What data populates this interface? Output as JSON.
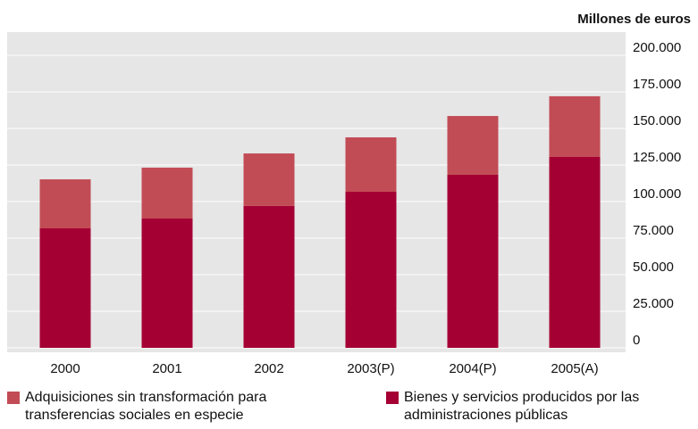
{
  "chart_data": {
    "type": "stacked_bar",
    "y_axis_label": "Millones de euros",
    "categories": [
      "2000",
      "2001",
      "2002",
      "2003(P)",
      "2004(P)",
      "2005(A)"
    ],
    "series": [
      {
        "name": "Bienes y servicios producidos por las administraciones públicas",
        "color": "#a50034",
        "values": [
          81700,
          88400,
          97000,
          106700,
          118300,
          130500
        ]
      },
      {
        "name": "Adquisiciones sin transformación para transferencias sociales en especie",
        "color": "#c24c55",
        "values": [
          33500,
          34800,
          35900,
          37200,
          40200,
          41500
        ]
      }
    ],
    "ylim": [
      0,
      200000
    ],
    "yticks": [
      {
        "value": 0,
        "label": "0"
      },
      {
        "value": 25000,
        "label": "25.000"
      },
      {
        "value": 50000,
        "label": "50.000"
      },
      {
        "value": 75000,
        "label": "75.000"
      },
      {
        "value": 100000,
        "label": "100.000"
      },
      {
        "value": 125000,
        "label": "125.000"
      },
      {
        "value": 150000,
        "label": "150.000"
      },
      {
        "value": 175000,
        "label": "175.000"
      },
      {
        "value": 200000,
        "label": "200.000"
      }
    ],
    "grid": true
  }
}
